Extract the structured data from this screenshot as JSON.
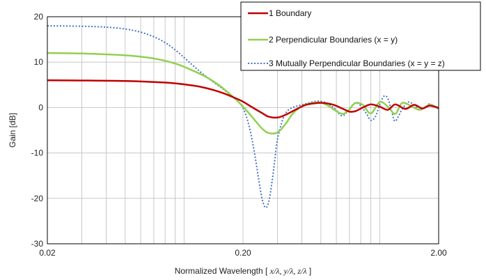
{
  "chart_data": {
    "type": "line",
    "xlabel_prefix": "Normalized Wavelength [ ",
    "xlabel_vars": "x/λ, y/λ, z/λ",
    "xlabel_suffix": " ]",
    "ylabel": "Gain [dB]",
    "x_scale": "log",
    "xlim": [
      0.02,
      2.0
    ],
    "ylim": [
      -30,
      20
    ],
    "x_ticks": [
      {
        "value": 0.02,
        "label": "0.02"
      },
      {
        "value": 0.2,
        "label": "0.20"
      },
      {
        "value": 2.0,
        "label": "2.00"
      }
    ],
    "y_ticks": [
      {
        "value": 20,
        "label": "20"
      },
      {
        "value": 10,
        "label": "10"
      },
      {
        "value": 0,
        "label": "0"
      },
      {
        "value": -10,
        "label": "-10"
      },
      {
        "value": -20,
        "label": "-20"
      },
      {
        "value": -30,
        "label": "-30"
      }
    ],
    "grid": {
      "x_minor": true,
      "y_major": true
    },
    "legend_position": "top-right",
    "series": [
      {
        "name": "1 Boundary",
        "color": "#c00000",
        "dash": "solid",
        "x": [
          0.02,
          0.03,
          0.05,
          0.08,
          0.1,
          0.12,
          0.14,
          0.16,
          0.18,
          0.2,
          0.22,
          0.25,
          0.27,
          0.3,
          0.33,
          0.37,
          0.42,
          0.48,
          0.52,
          0.58,
          0.65,
          0.7,
          0.75,
          0.82,
          0.9,
          1.0,
          1.1,
          1.2,
          1.35,
          1.5,
          1.65,
          1.8,
          2.0
        ],
        "y": [
          6.0,
          5.95,
          5.85,
          5.5,
          5.1,
          4.6,
          3.9,
          3.1,
          2.2,
          1.3,
          0.2,
          -1.2,
          -2.0,
          -2.2,
          -1.6,
          -0.5,
          0.6,
          1.0,
          1.0,
          0.6,
          -0.3,
          -0.9,
          -0.8,
          0.0,
          0.7,
          0.2,
          -0.5,
          0.7,
          -0.3,
          0.6,
          -0.2,
          0.4,
          -0.1
        ]
      },
      {
        "name": "2 Perpendicular Boundaries (x = y)",
        "color": "#92d050",
        "dash": "solid",
        "x": [
          0.02,
          0.03,
          0.05,
          0.07,
          0.09,
          0.11,
          0.13,
          0.15,
          0.17,
          0.19,
          0.21,
          0.23,
          0.25,
          0.27,
          0.3,
          0.33,
          0.36,
          0.4,
          0.45,
          0.5,
          0.55,
          0.6,
          0.65,
          0.7,
          0.75,
          0.82,
          0.9,
          1.0,
          1.1,
          1.2,
          1.3,
          1.45,
          1.6,
          1.8,
          2.0
        ],
        "y": [
          12.0,
          11.9,
          11.5,
          10.8,
          9.7,
          8.2,
          6.7,
          5.0,
          3.1,
          1.2,
          -0.8,
          -2.8,
          -4.6,
          -5.6,
          -5.5,
          -3.6,
          -1.3,
          0.3,
          1.0,
          1.1,
          0.3,
          -0.8,
          -1.4,
          -0.4,
          1.0,
          0.6,
          -1.3,
          1.2,
          0.2,
          -1.4,
          1.0,
          0.3,
          -0.5,
          0.6,
          -0.2
        ]
      },
      {
        "name": "3 Mutually Perpendicular Boundaries (x = y = z)",
        "color": "#4472c4",
        "dash": "dotted",
        "x": [
          0.02,
          0.03,
          0.04,
          0.05,
          0.06,
          0.07,
          0.08,
          0.09,
          0.1,
          0.11,
          0.12,
          0.13,
          0.14,
          0.15,
          0.16,
          0.17,
          0.18,
          0.19,
          0.2,
          0.21,
          0.22,
          0.23,
          0.24,
          0.25,
          0.26,
          0.27,
          0.28,
          0.29,
          0.3,
          0.32,
          0.34,
          0.37,
          0.4,
          0.44,
          0.48,
          0.52,
          0.56,
          0.6,
          0.63,
          0.66,
          0.7,
          0.74,
          0.78,
          0.82,
          0.86,
          0.9,
          0.95,
          1.0,
          1.05,
          1.1,
          1.15,
          1.2,
          1.3,
          1.4,
          1.5,
          1.6,
          1.7,
          1.8,
          1.9,
          2.0
        ],
        "y": [
          18.0,
          17.9,
          17.7,
          17.3,
          16.6,
          15.6,
          14.3,
          12.7,
          11.0,
          9.4,
          8.0,
          6.8,
          5.7,
          4.8,
          3.9,
          3.0,
          2.1,
          1.2,
          -0.1,
          -2.5,
          -6.0,
          -10.5,
          -15.5,
          -20.0,
          -22.0,
          -21.0,
          -17.0,
          -12.0,
          -7.0,
          -2.5,
          -0.6,
          0.2,
          0.6,
          1.1,
          1.4,
          1.2,
          0.5,
          -0.6,
          -1.7,
          -1.6,
          -0.3,
          0.9,
          0.8,
          -0.2,
          -1.5,
          -2.8,
          -2.0,
          0.6,
          2.5,
          2.0,
          -0.8,
          -3.0,
          -0.4,
          1.2,
          0.5,
          -0.5,
          0.0,
          0.8,
          0.2,
          -0.3
        ]
      }
    ]
  }
}
